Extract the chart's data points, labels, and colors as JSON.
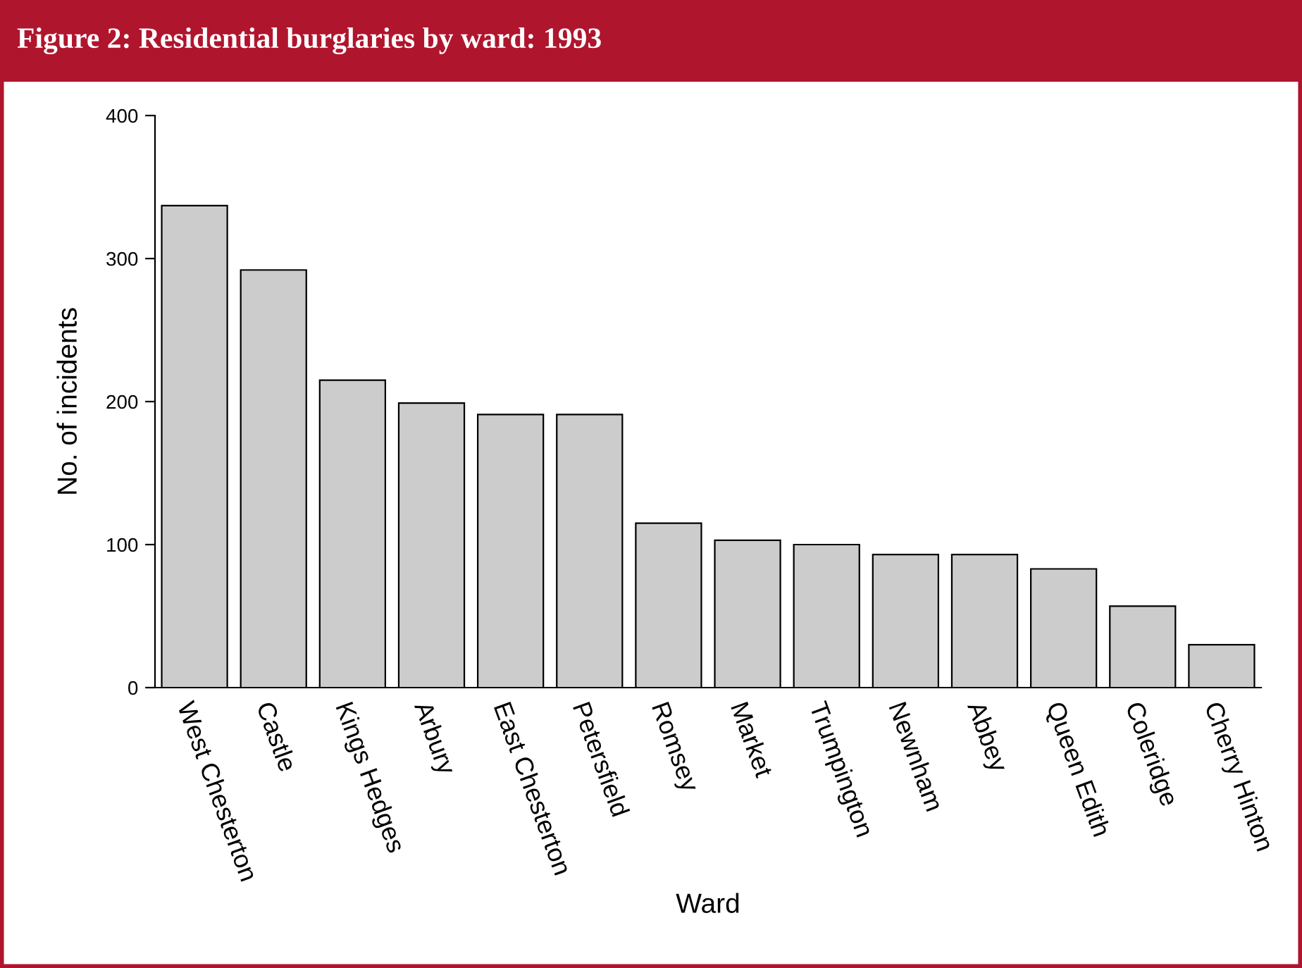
{
  "chart_data": {
    "type": "bar",
    "title": "Figure 2: Residential burglaries by ward: 1993",
    "xlabel": "Ward",
    "ylabel": "No. of incidents",
    "categories": [
      "West Chesterton",
      "Castle",
      "Kings Hedges",
      "Arbury",
      "East Chesterton",
      "Petersfield",
      "Romsey",
      "Market",
      "Trumpington",
      "Newnham",
      "Abbey",
      "Queen Edith",
      "Coleridge",
      "Cherry Hinton"
    ],
    "values": [
      337,
      292,
      215,
      199,
      191,
      191,
      115,
      103,
      100,
      93,
      93,
      83,
      57,
      30
    ],
    "color": "#cccccc",
    "ylim": [
      0,
      400
    ],
    "yticks": [
      0,
      100,
      200,
      300,
      400
    ],
    "grid": false,
    "legend": false
  }
}
